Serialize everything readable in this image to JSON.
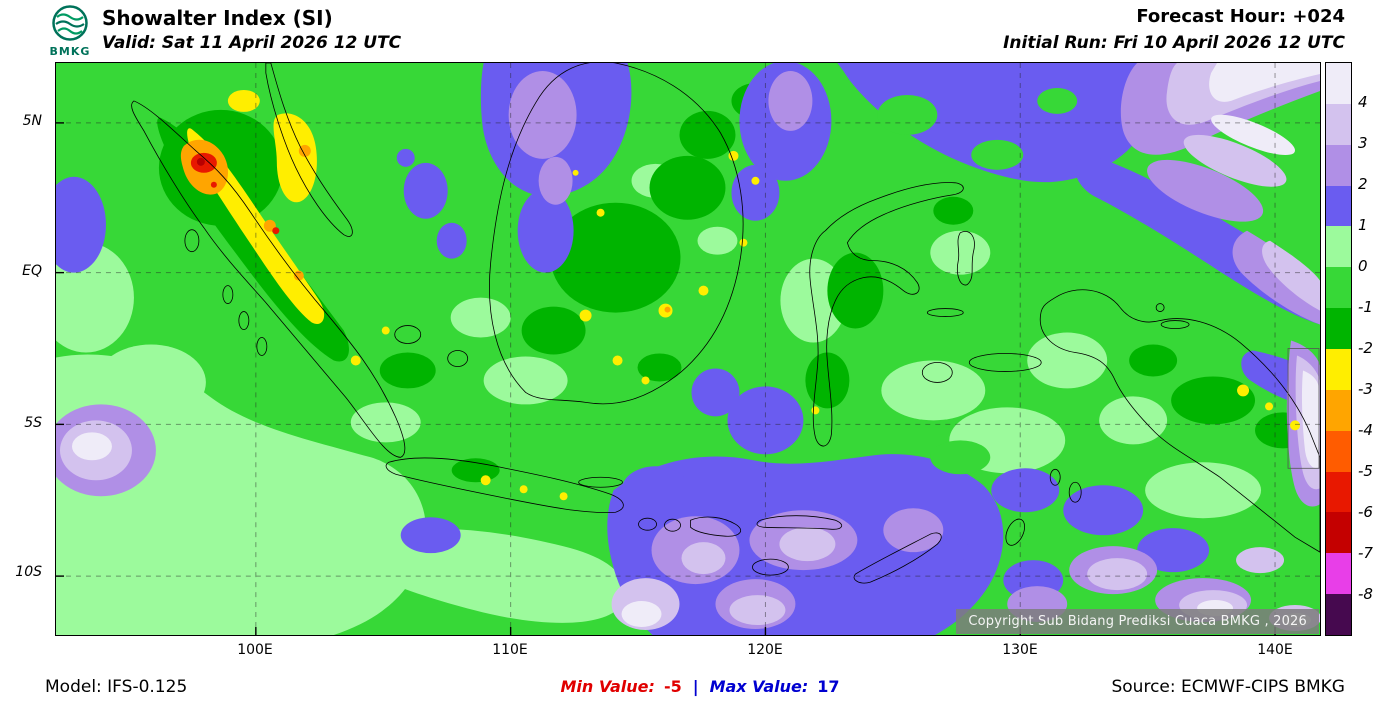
{
  "header": {
    "logo_text": "BMKG",
    "title": "Showalter Index (SI)",
    "valid": "Valid: Sat 11 April 2026 12 UTC",
    "forecast_hour": "Forecast Hour: +024",
    "initial_run": "Initial Run: Fri 10 April 2026 12 UTC"
  },
  "map": {
    "lat_labels": [
      "5N",
      "EQ",
      "5S",
      "10S"
    ],
    "lon_labels": [
      "100E",
      "110E",
      "120E",
      "130E",
      "140E"
    ],
    "copyright": "Copyright Sub Bidang Prediksi Cuaca BMKG , 2026"
  },
  "legend": {
    "tick_labels": [
      "4",
      "3",
      "2",
      "1",
      "0",
      "-1",
      "-2",
      "-3",
      "-4",
      "-5",
      "-6",
      "-7",
      "-8"
    ],
    "colors": [
      "#efecf8",
      "#d3c2ee",
      "#b08fe6",
      "#6a5cf0",
      "#9cfa9c",
      "#37d837",
      "#00b400",
      "#ffee00",
      "#ffa500",
      "#ff5c00",
      "#e81800",
      "#c40000",
      "#e83ee8",
      "#46094f"
    ]
  },
  "footer": {
    "model": "Model: IFS-0.125",
    "min_label": "Min Value:",
    "min_value": "-5",
    "separator": "|",
    "max_label": "Max Value:",
    "max_value": "17",
    "source": "Source: ECMWF-CIPS BMKG"
  },
  "chart_data": {
    "type": "heatmap",
    "title": "Showalter Index (SI)",
    "valid": "Sat 11 April 2026 12 UTC",
    "initial_run": "Fri 10 April 2026 12 UTC",
    "forecast_hour": "+024",
    "x_ticks": [
      "100E",
      "110E",
      "120E",
      "130E",
      "140E"
    ],
    "y_ticks": [
      "5N",
      "EQ",
      "5S",
      "10S"
    ],
    "legend_levels": [
      4,
      3,
      2,
      1,
      0,
      -1,
      -2,
      -3,
      -4,
      -5,
      -6,
      -7,
      -8
    ],
    "legend_colors": [
      "#efecf8",
      "#d3c2ee",
      "#b08fe6",
      "#6a5cf0",
      "#9cfa9c",
      "#37d837",
      "#00b400",
      "#ffee00",
      "#ffa500",
      "#ff5c00",
      "#e81800",
      "#c40000",
      "#e83ee8",
      "#46094f"
    ],
    "min_value": -5,
    "max_value": 17,
    "model": "IFS-0.125",
    "source": "ECMWF-CIPS BMKG"
  }
}
